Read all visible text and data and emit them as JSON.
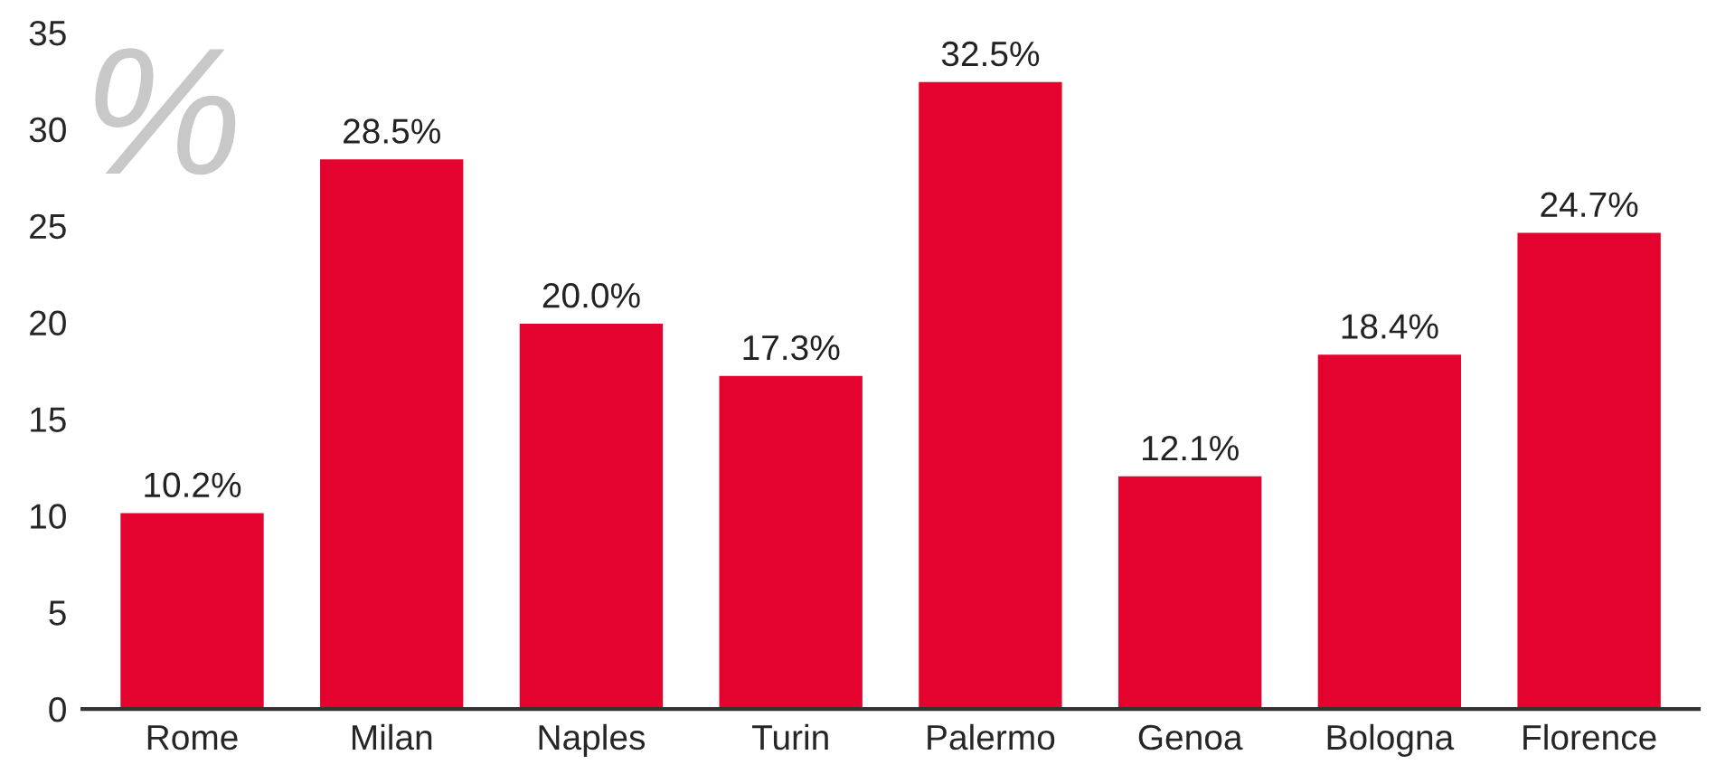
{
  "chart_data": {
    "type": "bar",
    "categories": [
      "Rome",
      "Milan",
      "Naples",
      "Turin",
      "Palermo",
      "Genoa",
      "Bologna",
      "Florence"
    ],
    "values": [
      10.2,
      28.5,
      20.0,
      17.3,
      32.5,
      12.1,
      18.4,
      24.7
    ],
    "value_labels": [
      "10.2%",
      "28.5%",
      "20.0%",
      "17.3%",
      "32.5%",
      "12.1%",
      "18.4%",
      "24.7%"
    ],
    "color": "#e4032e",
    "ylim": [
      0,
      35
    ],
    "yticks": [
      0,
      5,
      10,
      15,
      20,
      25,
      30,
      35
    ],
    "grid": false,
    "legend": false,
    "annotations": [
      "%"
    ]
  }
}
